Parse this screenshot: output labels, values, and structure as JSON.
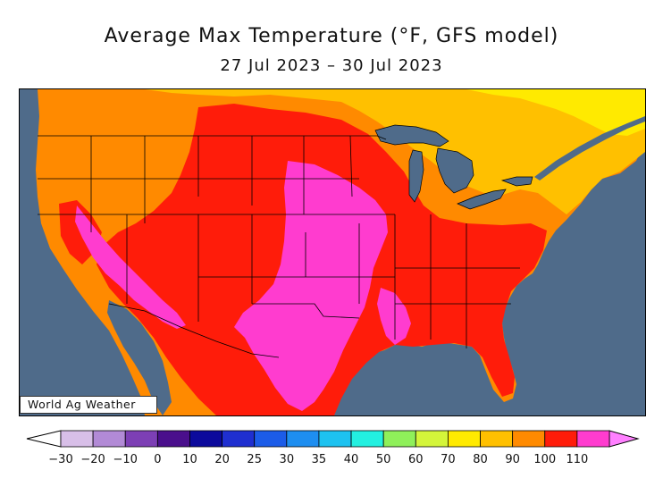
{
  "title": "Average Max Temperature (°F, GFS model)",
  "subtitle": "27 Jul 2023 – 30 Jul 2023",
  "credit": "World Ag Weather",
  "colors": {
    "ocean": "#4f6b8a",
    "t_60_70": "#ffea00",
    "t_70_80": "#ffc000",
    "t_80_90": "#ff8a00",
    "t_90_100": "#ff1c0a",
    "t_100_110": "#ff3ccf"
  },
  "legend": {
    "labels": [
      "−30",
      "−20",
      "−10",
      "0",
      "10",
      "20",
      "25",
      "30",
      "35",
      "40",
      "50",
      "60",
      "70",
      "80",
      "90",
      "100",
      "110"
    ],
    "colors": [
      "#d8bfe8",
      "#b28ad6",
      "#7d3fb5",
      "#4a0f8c",
      "#0c0a9c",
      "#1f2fd0",
      "#1c5ce8",
      "#1e8ef0",
      "#1dc2f0",
      "#23f0e0",
      "#8ff05a",
      "#d4f53a",
      "#ffea00",
      "#ffc000",
      "#ff8a00",
      "#ff1c0a",
      "#ff3ccf"
    ],
    "end_colors": [
      "#ffffff",
      "#ff80ff"
    ]
  }
}
